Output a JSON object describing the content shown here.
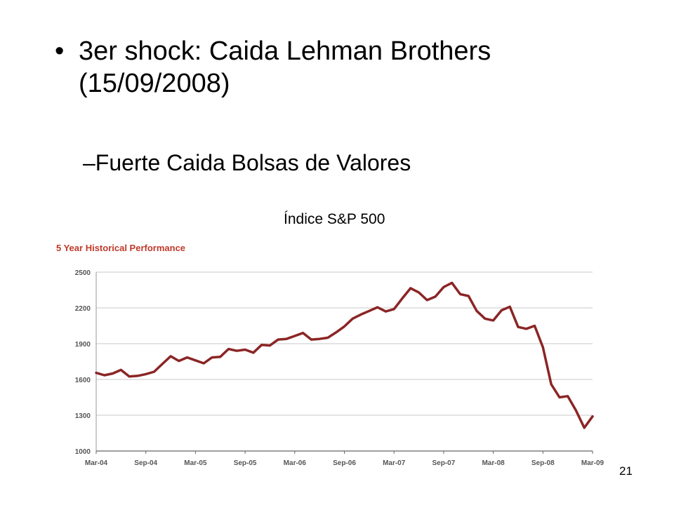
{
  "slide": {
    "bullet_symbol": "•",
    "title": "3er shock: Caida Lehman Brothers (15/09/2008)",
    "sub_dash": "–",
    "subtitle": "Fuerte Caida Bolsas de Valores",
    "caption": "Índice S&P 500",
    "page_number": "21"
  },
  "chart_data": {
    "type": "line",
    "title": "5 Year Historical Performance",
    "xlabel": "",
    "ylabel": "",
    "ylim": [
      1000,
      2500
    ],
    "yticks": [
      2500,
      2200,
      1900,
      1600,
      1300,
      1000
    ],
    "xtick_labels": [
      "Mar-04",
      "Sep-04",
      "Mar-05",
      "Sep-05",
      "Mar-06",
      "Sep-06",
      "Mar-07",
      "Sep-07",
      "Mar-08",
      "Sep-08",
      "Mar-09"
    ],
    "grid": "horizontal",
    "colors": {
      "line": "#8b2525",
      "title": "#c0392b",
      "grid": "#c8c8c8",
      "axis": "#999999"
    },
    "series": [
      {
        "values": [
          1655,
          1635,
          1650,
          1680,
          1625,
          1630,
          1645,
          1665,
          1730,
          1795,
          1755,
          1785,
          1760,
          1735,
          1785,
          1790,
          1855,
          1840,
          1850,
          1825,
          1890,
          1885,
          1935,
          1940,
          1965,
          1990,
          1935,
          1940,
          1950,
          1995,
          2045,
          2110,
          2145,
          2175,
          2205,
          2170,
          2190,
          2280,
          2365,
          2330,
          2265,
          2295,
          2375,
          2410,
          2315,
          2300,
          2175,
          2110,
          2095,
          2180,
          2210,
          2040,
          2025,
          2050,
          1870,
          1560,
          1450,
          1460,
          1340,
          1195,
          1290
        ]
      }
    ]
  }
}
